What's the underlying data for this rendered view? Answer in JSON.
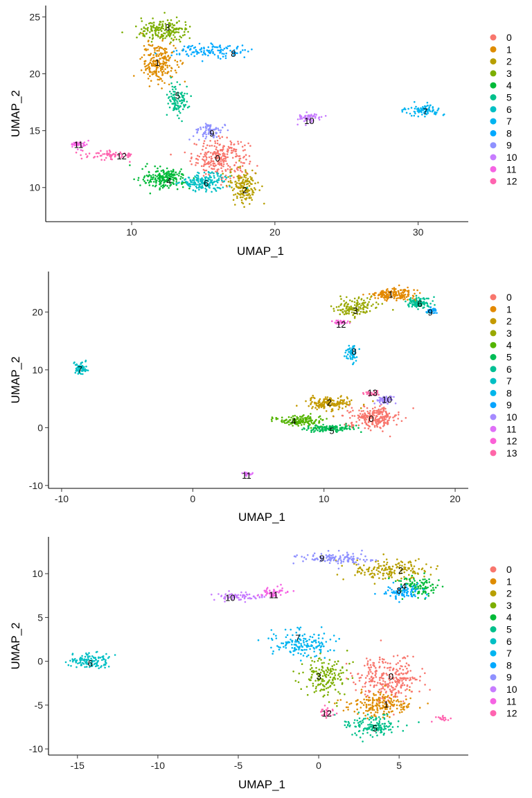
{
  "chart_data": [
    {
      "type": "scatter",
      "xlabel": "UMAP_1",
      "ylabel": "UMAP_2",
      "xlim": [
        4.0,
        33.5
      ],
      "ylim": [
        7.0,
        26.0
      ],
      "x_ticks": [
        10,
        20,
        30
      ],
      "y_ticks": [
        10,
        15,
        20,
        25
      ],
      "x_tick_labels": [
        "10",
        "20",
        "30"
      ],
      "y_tick_labels": [
        "10",
        "15",
        "20",
        "25"
      ],
      "legend_position": "right",
      "grid": false,
      "series": [
        {
          "name": "0",
          "color": "#F8766D",
          "label_pos": [
            16.0,
            12.6
          ],
          "clusters": [
            [
              16.2,
              12.6,
              1.8,
              1.5,
              260
            ]
          ]
        },
        {
          "name": "1",
          "color": "#DE8C00",
          "label_pos": [
            11.8,
            21.0
          ],
          "clusters": [
            [
              11.9,
              21.0,
              1.1,
              1.7,
              220
            ]
          ]
        },
        {
          "name": "2",
          "color": "#B79F00",
          "label_pos": [
            17.9,
            9.8
          ],
          "clusters": [
            [
              17.8,
              10.2,
              0.9,
              1.4,
              160
            ]
          ]
        },
        {
          "name": "3",
          "color": "#7CAE00",
          "label_pos": [
            12.5,
            24.1
          ],
          "clusters": [
            [
              12.3,
              23.8,
              1.7,
              0.9,
              180
            ]
          ]
        },
        {
          "name": "4",
          "color": "#00BA38",
          "label_pos": [
            12.6,
            10.6
          ],
          "clusters": [
            [
              12.3,
              10.8,
              1.4,
              0.8,
              200
            ]
          ]
        },
        {
          "name": "5",
          "color": "#00C08B",
          "label_pos": [
            13.2,
            18.1
          ],
          "clusters": [
            [
              13.2,
              17.8,
              0.7,
              1.3,
              100
            ]
          ]
        },
        {
          "name": "6",
          "color": "#00BFC4",
          "label_pos": [
            15.2,
            10.4
          ],
          "clusters": [
            [
              15.1,
              10.5,
              1.5,
              0.7,
              170
            ]
          ]
        },
        {
          "name": "7",
          "color": "#00B4F0",
          "label_pos": [
            30.5,
            16.7
          ],
          "clusters": [
            [
              30.4,
              16.8,
              1.1,
              0.4,
              90
            ]
          ]
        },
        {
          "name": "8",
          "color": "#00A9FF",
          "label_pos": [
            17.1,
            21.8
          ],
          "clusters": [
            [
              15.5,
              22.0,
              2.6,
              0.5,
              120
            ]
          ]
        },
        {
          "name": "9",
          "color": "#8F91FF",
          "label_pos": [
            15.6,
            14.8
          ],
          "clusters": [
            [
              15.5,
              15.0,
              0.9,
              0.6,
              70
            ]
          ]
        },
        {
          "name": "10",
          "color": "#C77CFF",
          "label_pos": [
            22.4,
            15.9
          ],
          "clusters": [
            [
              22.4,
              16.1,
              0.8,
              0.4,
              60
            ]
          ]
        },
        {
          "name": "11",
          "color": "#F564E3",
          "label_pos": [
            6.3,
            13.8
          ],
          "clusters": [
            [
              6.3,
              13.8,
              0.5,
              0.3,
              40
            ]
          ]
        },
        {
          "name": "12",
          "color": "#FF64B0",
          "label_pos": [
            9.3,
            12.8
          ],
          "clusters": [
            [
              8.5,
              12.9,
              1.8,
              0.4,
              70
            ]
          ]
        }
      ]
    },
    {
      "type": "scatter",
      "xlabel": "UMAP_1",
      "ylabel": "UMAP_2",
      "xlim": [
        -11.0,
        21.0
      ],
      "ylim": [
        -10.5,
        27.0
      ],
      "x_ticks": [
        -10,
        0,
        10,
        20
      ],
      "y_ticks": [
        -10,
        0,
        10,
        20
      ],
      "x_tick_labels": [
        "-10",
        "0",
        "10",
        "20"
      ],
      "y_tick_labels": [
        "-10",
        "0",
        "10",
        "20"
      ],
      "legend_position": "right",
      "grid": false,
      "series": [
        {
          "name": "0",
          "color": "#F8766D",
          "label_pos": [
            13.6,
            1.6
          ],
          "clusters": [
            [
              13.8,
              1.8,
              1.8,
              1.7,
              240
            ]
          ]
        },
        {
          "name": "1",
          "color": "#E38900",
          "label_pos": [
            15.1,
            23.1
          ],
          "clusters": [
            [
              15.2,
              23.0,
              1.6,
              0.9,
              170
            ]
          ]
        },
        {
          "name": "2",
          "color": "#C49A00",
          "label_pos": [
            10.4,
            4.4
          ],
          "clusters": [
            [
              10.4,
              4.2,
              1.6,
              1.1,
              160
            ]
          ]
        },
        {
          "name": "3",
          "color": "#99A800",
          "label_pos": [
            12.4,
            20.3
          ],
          "clusters": [
            [
              12.4,
              20.8,
              1.4,
              1.4,
              130
            ]
          ]
        },
        {
          "name": "4",
          "color": "#53B400",
          "label_pos": [
            7.7,
            1.2
          ],
          "clusters": [
            [
              8.2,
              1.2,
              1.6,
              0.8,
              150
            ]
          ]
        },
        {
          "name": "5",
          "color": "#00BC56",
          "label_pos": [
            10.6,
            -0.5
          ],
          "clusters": [
            [
              10.5,
              -0.1,
              1.7,
              0.5,
              130
            ]
          ]
        },
        {
          "name": "6",
          "color": "#00C094",
          "label_pos": [
            17.3,
            21.5
          ],
          "clusters": [
            [
              17.3,
              21.5,
              0.9,
              1.0,
              110
            ]
          ]
        },
        {
          "name": "7",
          "color": "#00BFC4",
          "label_pos": [
            -8.6,
            10.1
          ],
          "clusters": [
            [
              -8.6,
              10.3,
              0.4,
              0.9,
              70
            ]
          ]
        },
        {
          "name": "8",
          "color": "#00B6EB",
          "label_pos": [
            12.3,
            13.2
          ],
          "clusters": [
            [
              12.1,
              12.8,
              0.4,
              1.4,
              60
            ]
          ]
        },
        {
          "name": "9",
          "color": "#06A4FF",
          "label_pos": [
            18.1,
            20.0
          ],
          "clusters": [
            [
              18.2,
              20.2,
              0.4,
              0.6,
              40
            ]
          ]
        },
        {
          "name": "10",
          "color": "#A58AFF",
          "label_pos": [
            14.8,
            4.9
          ],
          "clusters": [
            [
              14.6,
              4.7,
              0.7,
              0.7,
              60
            ]
          ]
        },
        {
          "name": "11",
          "color": "#DF70F8",
          "label_pos": [
            4.1,
            -8.2
          ],
          "clusters": [
            [
              4.2,
              -8.0,
              0.3,
              0.3,
              25
            ]
          ]
        },
        {
          "name": "12",
          "color": "#FB61D7",
          "label_pos": [
            11.3,
            17.9
          ],
          "clusters": [
            [
              11.2,
              18.2,
              0.5,
              0.4,
              30
            ]
          ]
        },
        {
          "name": "13",
          "color": "#FF66A8",
          "label_pos": [
            13.7,
            6.1
          ],
          "clusters": [
            [
              13.6,
              6.0,
              0.6,
              0.4,
              30
            ]
          ]
        }
      ]
    },
    {
      "type": "scatter",
      "xlabel": "UMAP_1",
      "ylabel": "UMAP_2",
      "xlim": [
        -16.8,
        9.3
      ],
      "ylim": [
        -10.7,
        14.2
      ],
      "x_ticks": [
        -15,
        -10,
        -5,
        0,
        5
      ],
      "y_ticks": [
        -10,
        -5,
        0,
        5,
        10
      ],
      "x_tick_labels": [
        "-15",
        "-10",
        "-5",
        "0",
        "5"
      ],
      "y_tick_labels": [
        "-10",
        "-5",
        "0",
        "5",
        "10"
      ],
      "legend_position": "right",
      "grid": false,
      "series": [
        {
          "name": "0",
          "color": "#F8766D",
          "label_pos": [
            4.5,
            -1.7
          ],
          "clusters": [
            [
              4.4,
              -2.0,
              1.8,
              2.3,
              280
            ]
          ]
        },
        {
          "name": "1",
          "color": "#DE8C00",
          "label_pos": [
            4.2,
            -4.9
          ],
          "clusters": [
            [
              3.9,
              -4.9,
              1.8,
              1.2,
              190
            ]
          ]
        },
        {
          "name": "2",
          "color": "#B79F00",
          "label_pos": [
            5.1,
            10.4
          ],
          "clusters": [
            [
              4.3,
              10.4,
              2.3,
              1.0,
              170
            ]
          ]
        },
        {
          "name": "3",
          "color": "#7CAE00",
          "label_pos": [
            0.0,
            -1.7
          ],
          "clusters": [
            [
              0.3,
              -1.8,
              1.2,
              2.0,
              170
            ]
          ]
        },
        {
          "name": "4",
          "color": "#00BA38",
          "label_pos": [
            5.3,
            8.6
          ],
          "clusters": [
            [
              6.2,
              8.5,
              1.2,
              1.0,
              110
            ]
          ]
        },
        {
          "name": "5",
          "color": "#00C08B",
          "label_pos": [
            3.5,
            -7.6
          ],
          "clusters": [
            [
              3.3,
              -7.4,
              1.6,
              1.1,
              150
            ]
          ]
        },
        {
          "name": "6",
          "color": "#00BFC4",
          "label_pos": [
            -14.2,
            -0.2
          ],
          "clusters": [
            [
              -14.2,
              0.0,
              1.2,
              0.8,
              120
            ]
          ]
        },
        {
          "name": "7",
          "color": "#00B4F0",
          "label_pos": [
            -1.3,
            2.7
          ],
          "clusters": [
            [
              -1.0,
              2.0,
              1.6,
              1.4,
              160
            ]
          ]
        },
        {
          "name": "8",
          "color": "#00A9FF",
          "label_pos": [
            5.0,
            8.1
          ],
          "clusters": [
            [
              5.2,
              7.9,
              1.1,
              0.8,
              90
            ]
          ]
        },
        {
          "name": "9",
          "color": "#8F91FF",
          "label_pos": [
            0.2,
            11.8
          ],
          "clusters": [
            [
              1.2,
              11.7,
              2.2,
              0.6,
              120
            ]
          ]
        },
        {
          "name": "10",
          "color": "#C77CFF",
          "label_pos": [
            -5.5,
            7.3
          ],
          "clusters": [
            [
              -5.0,
              7.4,
              1.5,
              0.4,
              70
            ]
          ]
        },
        {
          "name": "11",
          "color": "#F564E3",
          "label_pos": [
            -2.8,
            7.6
          ],
          "clusters": [
            [
              -2.8,
              7.8,
              0.8,
              0.6,
              50
            ]
          ]
        },
        {
          "name": "12",
          "color": "#FF64B0",
          "label_pos": [
            0.5,
            -5.9
          ],
          "clusters": [
            [
              0.5,
              -5.8,
              0.4,
              0.6,
              30
            ],
            [
              7.7,
              -6.5,
              0.6,
              0.3,
              18
            ]
          ]
        }
      ]
    }
  ]
}
